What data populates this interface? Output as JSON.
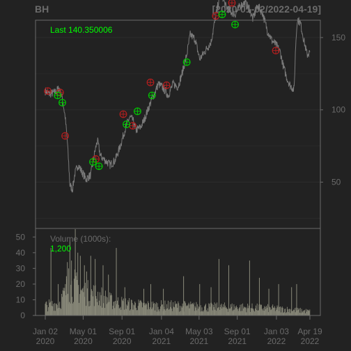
{
  "header": {
    "symbol": "BH",
    "date_range": "[2020-01-02/2022-04-19]"
  },
  "colors": {
    "background": "#222222",
    "panel_border": "#6b6b6b",
    "price_line": "#7a7a7a",
    "volume_bar": "#8a8a7a",
    "buy_marker": "#00c800",
    "sell_marker": "#b41e1e",
    "last_text": "#00ff00",
    "axis_text": "#6b6b6b"
  },
  "chart_data": [
    {
      "type": "line",
      "panel": "price",
      "series": [],
      "last_label": "Last 140.350006",
      "ylim": [
        18,
        162
      ],
      "y_ticks": [
        "50",
        "100",
        "150"
      ],
      "x_ticks": [
        {
          "line1": "Jan 02",
          "line2": "2020",
          "date": "2020-01-02"
        },
        {
          "line1": "May 01",
          "line2": "2020",
          "date": "2020-05-01"
        },
        {
          "line1": "Sep 01",
          "line2": "2020",
          "date": "2020-09-01"
        },
        {
          "line1": "Jan 04",
          "line2": "2021",
          "date": "2021-01-04"
        },
        {
          "line1": "May 03",
          "line2": "2021",
          "date": "2021-05-03"
        },
        {
          "line1": "Sep 01",
          "line2": "2021",
          "date": "2021-09-01"
        },
        {
          "line1": "Jan 03",
          "line2": "2022",
          "date": "2022-01-03"
        },
        {
          "line1": "Apr 19",
          "line2": "2022",
          "date": "2022-04-19"
        }
      ],
      "x_range": [
        "2020-01-02",
        "2022-04-19"
      ],
      "price_path": [
        [
          "2020-01-02",
          113
        ],
        [
          "2020-01-15",
          111
        ],
        [
          "2020-02-01",
          112
        ],
        [
          "2020-02-15",
          115
        ],
        [
          "2020-02-25",
          108
        ],
        [
          "2020-03-05",
          95
        ],
        [
          "2020-03-12",
          78
        ],
        [
          "2020-03-20",
          48
        ],
        [
          "2020-03-28",
          45
        ],
        [
          "2020-04-05",
          56
        ],
        [
          "2020-04-15",
          62
        ],
        [
          "2020-04-25",
          58
        ],
        [
          "2020-05-10",
          52
        ],
        [
          "2020-05-25",
          55
        ],
        [
          "2020-06-08",
          72
        ],
        [
          "2020-06-15",
          79
        ],
        [
          "2020-06-25",
          68
        ],
        [
          "2020-07-10",
          65
        ],
        [
          "2020-07-25",
          62
        ],
        [
          "2020-08-10",
          65
        ],
        [
          "2020-08-25",
          74
        ],
        [
          "2020-09-10",
          86
        ],
        [
          "2020-09-25",
          95
        ],
        [
          "2020-10-05",
          93
        ],
        [
          "2020-10-15",
          86
        ],
        [
          "2020-10-30",
          88
        ],
        [
          "2020-11-10",
          93
        ],
        [
          "2020-11-25",
          102
        ],
        [
          "2020-12-10",
          110
        ],
        [
          "2020-12-25",
          118
        ],
        [
          "2021-01-10",
          115
        ],
        [
          "2021-01-25",
          110
        ],
        [
          "2021-02-10",
          118
        ],
        [
          "2021-02-25",
          116
        ],
        [
          "2021-03-10",
          125
        ],
        [
          "2021-03-25",
          138
        ],
        [
          "2021-04-05",
          152
        ],
        [
          "2021-04-20",
          149
        ],
        [
          "2021-05-05",
          135
        ],
        [
          "2021-05-20",
          140
        ],
        [
          "2021-06-10",
          147
        ],
        [
          "2021-06-25",
          165
        ],
        [
          "2021-07-05",
          176
        ],
        [
          "2021-07-15",
          180
        ],
        [
          "2021-07-25",
          172
        ],
        [
          "2021-08-10",
          168
        ],
        [
          "2021-08-25",
          166
        ],
        [
          "2021-09-10",
          172
        ],
        [
          "2021-09-25",
          174
        ],
        [
          "2021-10-10",
          170
        ],
        [
          "2021-10-20",
          163
        ],
        [
          "2021-11-05",
          172
        ],
        [
          "2021-11-20",
          167
        ],
        [
          "2021-12-05",
          155
        ],
        [
          "2021-12-20",
          148
        ],
        [
          "2022-01-05",
          144
        ],
        [
          "2022-01-15",
          140
        ],
        [
          "2022-01-25",
          130
        ],
        [
          "2022-02-05",
          122
        ],
        [
          "2022-02-15",
          117
        ],
        [
          "2022-02-28",
          114
        ],
        [
          "2022-03-05",
          145
        ],
        [
          "2022-03-10",
          163
        ],
        [
          "2022-03-20",
          160
        ],
        [
          "2022-04-01",
          147
        ],
        [
          "2022-04-10",
          138
        ],
        [
          "2022-04-19",
          140
        ]
      ],
      "buy_markers": [
        [
          "2020-02-10",
          110
        ],
        [
          "2020-02-25",
          105
        ],
        [
          "2020-06-01",
          64
        ],
        [
          "2020-06-20",
          61
        ],
        [
          "2020-09-15",
          90
        ],
        [
          "2020-10-20",
          99
        ],
        [
          "2020-12-05",
          110
        ],
        [
          "2021-03-25",
          133
        ],
        [
          "2021-07-15",
          166
        ],
        [
          "2021-08-25",
          159
        ]
      ],
      "sell_markers": [
        [
          "2020-01-10",
          113
        ],
        [
          "2020-02-18",
          112
        ],
        [
          "2020-03-05",
          82
        ],
        [
          "2020-06-10",
          66
        ],
        [
          "2020-09-05",
          97
        ],
        [
          "2020-10-05",
          89
        ],
        [
          "2020-11-30",
          119
        ],
        [
          "2021-01-20",
          117
        ],
        [
          "2021-06-25",
          165
        ],
        [
          "2021-08-15",
          174
        ],
        [
          "2022-01-01",
          141
        ]
      ]
    },
    {
      "type": "bar",
      "panel": "volume",
      "series": [],
      "label": "Volume (1000s):",
      "last_value": "1,200",
      "ylim": [
        0,
        55
      ],
      "y_ticks": [
        "0",
        "10",
        "20",
        "30",
        "40",
        "50"
      ],
      "volume_profile": [
        [
          "2020-01-02",
          7
        ],
        [
          "2020-02-15",
          9
        ],
        [
          "2020-03-10",
          18
        ],
        [
          "2020-04-01",
          22
        ],
        [
          "2020-05-01",
          17
        ],
        [
          "2020-06-15",
          15
        ],
        [
          "2020-08-01",
          10
        ],
        [
          "2020-10-01",
          8
        ],
        [
          "2020-12-01",
          7
        ],
        [
          "2021-03-01",
          7
        ],
        [
          "2021-06-01",
          6
        ],
        [
          "2021-09-01",
          6
        ],
        [
          "2022-01-01",
          5
        ],
        [
          "2022-04-19",
          3
        ]
      ],
      "volume_spikes": [
        [
          "2020-01-20",
          43
        ],
        [
          "2020-02-12",
          20
        ],
        [
          "2020-03-09",
          25
        ],
        [
          "2020-03-12",
          34
        ],
        [
          "2020-03-16",
          30
        ],
        [
          "2020-03-20",
          48
        ],
        [
          "2020-03-25",
          35
        ],
        [
          "2020-04-06",
          55
        ],
        [
          "2020-04-14",
          40
        ],
        [
          "2020-04-22",
          38
        ],
        [
          "2020-05-05",
          32
        ],
        [
          "2020-05-12",
          28
        ],
        [
          "2020-05-25",
          38
        ],
        [
          "2020-06-08",
          36
        ],
        [
          "2020-07-03",
          32
        ],
        [
          "2020-07-20",
          26
        ],
        [
          "2020-08-14",
          43
        ],
        [
          "2020-09-10",
          18
        ],
        [
          "2020-11-09",
          17
        ],
        [
          "2020-12-01",
          20
        ],
        [
          "2021-01-10",
          17
        ],
        [
          "2021-03-15",
          25
        ],
        [
          "2021-05-05",
          20
        ],
        [
          "2021-06-10",
          18
        ],
        [
          "2021-07-05",
          36
        ],
        [
          "2021-08-05",
          32
        ],
        [
          "2021-10-10",
          35
        ],
        [
          "2021-11-10",
          24
        ],
        [
          "2021-12-10",
          17
        ],
        [
          "2022-01-10",
          20
        ],
        [
          "2022-02-20",
          18
        ],
        [
          "2022-03-08",
          20
        ]
      ]
    }
  ]
}
